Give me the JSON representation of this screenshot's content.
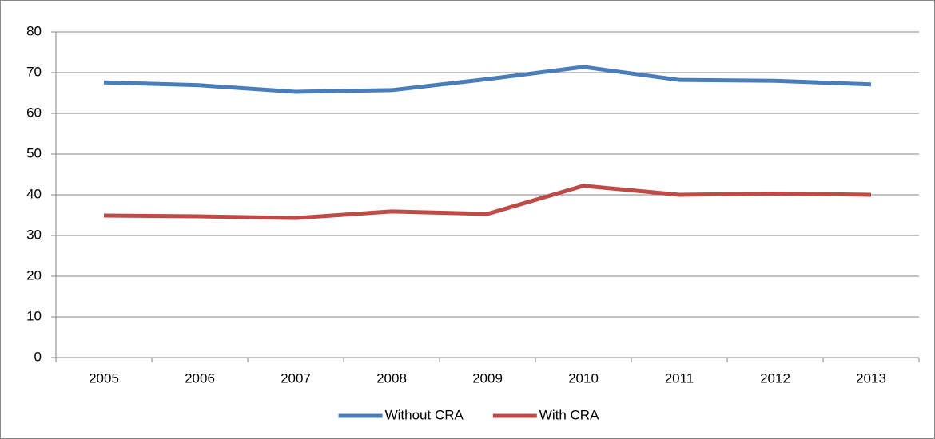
{
  "chart_data": {
    "type": "line",
    "categories": [
      "2005",
      "2006",
      "2007",
      "2008",
      "2009",
      "2010",
      "2011",
      "2012",
      "2013"
    ],
    "series": [
      {
        "name": "Without CRA",
        "color": "#4a7ebb",
        "values": [
          67.6,
          66.9,
          65.3,
          65.7,
          68.4,
          71.4,
          68.2,
          68.0,
          67.1
        ]
      },
      {
        "name": "With CRA",
        "color": "#be4b48",
        "values": [
          34.9,
          34.7,
          34.3,
          35.9,
          35.3,
          42.2,
          40.0,
          40.3,
          40.0
        ]
      }
    ],
    "ylim": [
      0,
      80
    ],
    "yticks": [
      0,
      10,
      20,
      30,
      40,
      50,
      60,
      70,
      80
    ],
    "grid": true,
    "legend": "bottom"
  }
}
